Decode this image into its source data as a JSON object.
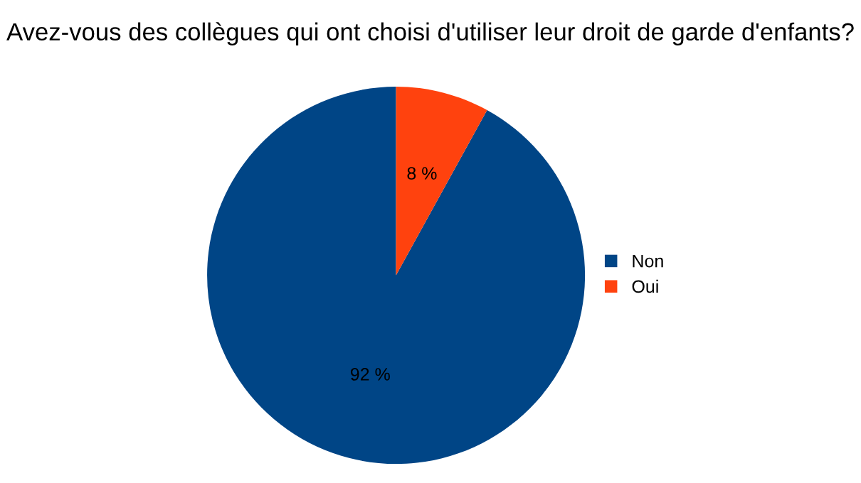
{
  "chart_data": {
    "type": "pie",
    "title": "Avez-vous des collègues qui ont choisi d'utiliser leur droit de garde d'enfants?",
    "categories": [
      "Non",
      "Oui"
    ],
    "values": [
      92,
      8
    ],
    "colors": [
      "#004586",
      "#ff420e"
    ],
    "value_labels": [
      "92 %",
      "8 %"
    ],
    "legend": "right"
  }
}
